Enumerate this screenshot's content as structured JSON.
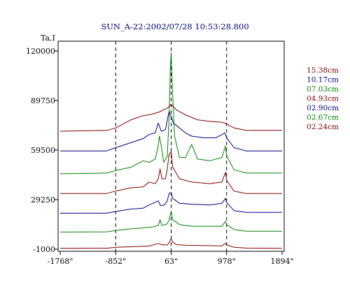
{
  "chart_data": {
    "type": "line",
    "title": "SUN_A-22:2002/07/28 10:53:28.800",
    "ylabel": "Ta,I",
    "xlabel": "",
    "y_ticks": [
      -1000,
      29250,
      59500,
      89750,
      120000
    ],
    "y_tick_labels": [
      "-1000",
      "29250",
      "59500",
      "89750",
      "120000"
    ],
    "ylim": [
      -1000,
      120000
    ],
    "x_ticks": [
      -1768,
      -852,
      63,
      978,
      1894
    ],
    "x_tick_labels": [
      "-1768\"",
      "-852\"",
      "63\"",
      "978\"",
      "1894\""
    ],
    "xlim": [
      -1768,
      1894
    ],
    "vertical_dashed_lines": [
      -852,
      63,
      978
    ],
    "legend_position": "right",
    "grid": false,
    "series": [
      {
        "name": "02.24cm",
        "color": "#800000",
        "points": [
          [
            -1768,
            -500
          ],
          [
            -1000,
            -400
          ],
          [
            -852,
            200
          ],
          [
            -600,
            500
          ],
          [
            -300,
            900
          ],
          [
            -150,
            2500
          ],
          [
            -100,
            1800
          ],
          [
            0,
            1500
          ],
          [
            30,
            3000
          ],
          [
            63,
            5500
          ],
          [
            90,
            3200
          ],
          [
            150,
            1800
          ],
          [
            300,
            1400
          ],
          [
            600,
            1200
          ],
          [
            900,
            1000
          ],
          [
            960,
            2600
          ],
          [
            978,
            1600
          ],
          [
            1100,
            200
          ],
          [
            1300,
            -300
          ],
          [
            1894,
            -500
          ]
        ]
      },
      {
        "name": "02.67cm",
        "color": "#008000",
        "points": [
          [
            -1768,
            9500
          ],
          [
            -1000,
            9600
          ],
          [
            -852,
            10400
          ],
          [
            -600,
            11500
          ],
          [
            -400,
            12000
          ],
          [
            -250,
            12500
          ],
          [
            -150,
            13500
          ],
          [
            -120,
            17000
          ],
          [
            -90,
            13500
          ],
          [
            0,
            14500
          ],
          [
            30,
            17000
          ],
          [
            63,
            22000
          ],
          [
            90,
            17000
          ],
          [
            200,
            14000
          ],
          [
            400,
            13000
          ],
          [
            700,
            13000
          ],
          [
            900,
            13000
          ],
          [
            960,
            16000
          ],
          [
            978,
            14000
          ],
          [
            1100,
            11000
          ],
          [
            1300,
            10000
          ],
          [
            1894,
            10000
          ]
        ]
      },
      {
        "name": "02.90cm",
        "color": "#000080",
        "points": [
          [
            -1768,
            21000
          ],
          [
            -1000,
            21000
          ],
          [
            -852,
            22000
          ],
          [
            -600,
            23500
          ],
          [
            -400,
            24000
          ],
          [
            -300,
            26000
          ],
          [
            -150,
            28500
          ],
          [
            -110,
            25500
          ],
          [
            -50,
            26000
          ],
          [
            0,
            28500
          ],
          [
            30,
            33000
          ],
          [
            63,
            33500
          ],
          [
            90,
            30000
          ],
          [
            200,
            27000
          ],
          [
            400,
            26500
          ],
          [
            700,
            26000
          ],
          [
            900,
            27000
          ],
          [
            960,
            30000
          ],
          [
            978,
            27500
          ],
          [
            1100,
            22500
          ],
          [
            1300,
            21500
          ],
          [
            1894,
            21500
          ]
        ]
      },
      {
        "name": "04.93cm",
        "color": "#800000",
        "points": [
          [
            -1768,
            33000
          ],
          [
            -1000,
            33000
          ],
          [
            -852,
            34500
          ],
          [
            -600,
            36500
          ],
          [
            -400,
            37000
          ],
          [
            -300,
            40000
          ],
          [
            -200,
            39000
          ],
          [
            -150,
            42000
          ],
          [
            -120,
            48000
          ],
          [
            -90,
            42000
          ],
          [
            -30,
            42000
          ],
          [
            0,
            48000
          ],
          [
            30,
            57000
          ],
          [
            63,
            58500
          ],
          [
            90,
            49000
          ],
          [
            200,
            42000
          ],
          [
            400,
            40000
          ],
          [
            700,
            39000
          ],
          [
            900,
            40000
          ],
          [
            960,
            46000
          ],
          [
            978,
            41000
          ],
          [
            1100,
            34500
          ],
          [
            1300,
            33000
          ],
          [
            1894,
            33000
          ]
        ]
      },
      {
        "name": "07.03cm",
        "color": "#008000",
        "points": [
          [
            -1768,
            45000
          ],
          [
            -1000,
            45500
          ],
          [
            -852,
            47000
          ],
          [
            -600,
            49000
          ],
          [
            -400,
            53000
          ],
          [
            -300,
            52000
          ],
          [
            -200,
            54000
          ],
          [
            -160,
            60000
          ],
          [
            -130,
            68000
          ],
          [
            -100,
            62000
          ],
          [
            -60,
            52000
          ],
          [
            0,
            56000
          ],
          [
            30,
            80000
          ],
          [
            50,
            110000
          ],
          [
            63,
            119000
          ],
          [
            80,
            100000
          ],
          [
            120,
            68000
          ],
          [
            200,
            55000
          ],
          [
            300,
            55000
          ],
          [
            400,
            63000
          ],
          [
            500,
            54000
          ],
          [
            700,
            53000
          ],
          [
            900,
            55000
          ],
          [
            960,
            62000
          ],
          [
            978,
            56000
          ],
          [
            1100,
            47500
          ],
          [
            1300,
            45500
          ],
          [
            1894,
            45500
          ]
        ]
      },
      {
        "name": "10.17cm",
        "color": "#000080",
        "points": [
          [
            -1768,
            59000
          ],
          [
            -1000,
            59000
          ],
          [
            -852,
            61000
          ],
          [
            -600,
            64000
          ],
          [
            -400,
            66500
          ],
          [
            -300,
            69000
          ],
          [
            -200,
            70000
          ],
          [
            -150,
            76000
          ],
          [
            -100,
            71000
          ],
          [
            -30,
            72000
          ],
          [
            0,
            78000
          ],
          [
            30,
            83000
          ],
          [
            63,
            80000
          ],
          [
            100,
            76000
          ],
          [
            200,
            73000
          ],
          [
            300,
            70000
          ],
          [
            400,
            68000
          ],
          [
            600,
            67000
          ],
          [
            800,
            67000
          ],
          [
            950,
            70000
          ],
          [
            978,
            67000
          ],
          [
            1100,
            61000
          ],
          [
            1300,
            59000
          ],
          [
            1894,
            59000
          ]
        ]
      },
      {
        "name": "15.38cm",
        "color": "#800000",
        "points": [
          [
            -1768,
            71000
          ],
          [
            -1000,
            71500
          ],
          [
            -852,
            73000
          ],
          [
            -600,
            78000
          ],
          [
            -400,
            80500
          ],
          [
            -300,
            81000
          ],
          [
            -150,
            82500
          ],
          [
            0,
            85000
          ],
          [
            63,
            87500
          ],
          [
            150,
            84000
          ],
          [
            300,
            81000
          ],
          [
            500,
            78000
          ],
          [
            700,
            77000
          ],
          [
            900,
            76500
          ],
          [
            978,
            75500
          ],
          [
            1100,
            73000
          ],
          [
            1300,
            71500
          ],
          [
            1894,
            71500
          ]
        ]
      }
    ]
  }
}
